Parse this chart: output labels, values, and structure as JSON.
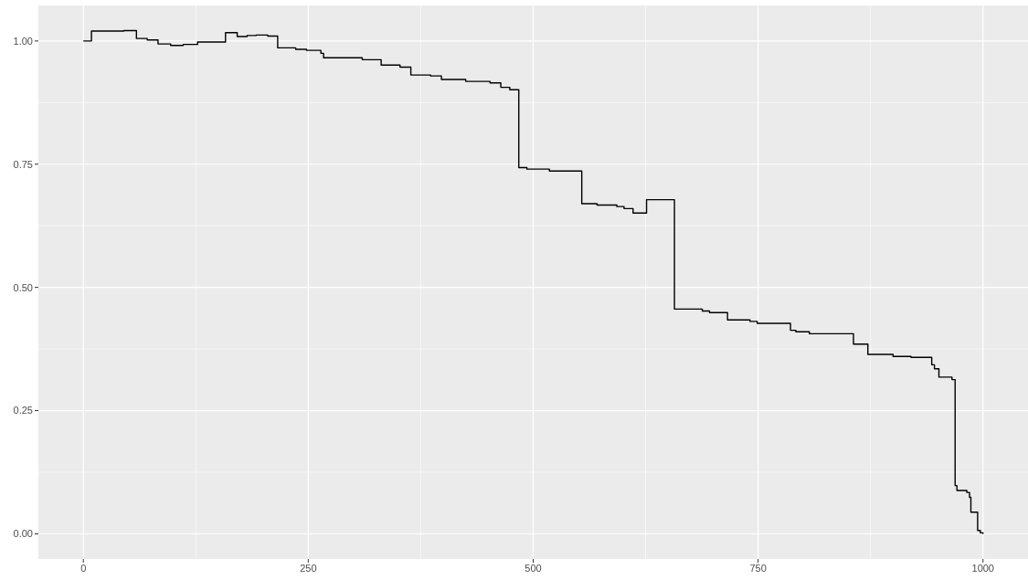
{
  "chart_data": {
    "type": "step",
    "color": "#000000",
    "x": [
      0,
      9,
      45,
      59,
      71,
      83,
      97,
      111,
      127,
      158,
      171,
      182,
      192,
      205,
      216,
      236,
      248,
      264,
      267,
      310,
      331,
      352,
      364,
      386,
      398,
      425,
      452,
      464,
      474,
      484,
      493,
      518,
      554,
      571,
      593,
      601,
      611,
      626,
      657,
      688,
      696,
      716,
      741,
      749,
      786,
      792,
      807,
      856,
      872,
      900,
      920,
      943,
      946,
      951,
      965.5,
      969,
      971,
      982,
      985,
      986.5,
      994,
      997,
      1000
    ],
    "values": [
      1.0,
      1.02,
      1.021,
      1.005,
      1.002,
      0.994,
      0.991,
      0.993,
      0.998,
      1.017,
      1.009,
      1.011,
      1.012,
      1.01,
      0.986,
      0.983,
      0.981,
      0.975,
      0.966,
      0.962,
      0.951,
      0.947,
      0.931,
      0.929,
      0.922,
      0.918,
      0.915,
      0.906,
      0.901,
      0.743,
      0.74,
      0.736,
      0.67,
      0.667,
      0.664,
      0.66,
      0.651,
      0.678,
      0.456,
      0.452,
      0.449,
      0.434,
      0.431,
      0.427,
      0.413,
      0.41,
      0.406,
      0.385,
      0.364,
      0.36,
      0.358,
      0.343,
      0.335,
      0.318,
      0.313,
      0.098,
      0.088,
      0.084,
      0.074,
      0.044,
      0.007,
      0.002,
      0.0
    ],
    "xlim": [
      -50,
      1050
    ],
    "ylim": [
      -0.051,
      1.072
    ],
    "xticks": [
      0,
      250,
      500,
      750,
      1000
    ],
    "yticks": [
      {
        "value": 0,
        "label": "0.00"
      },
      {
        "value": 0.25,
        "label": "0.25"
      },
      {
        "value": 0.5,
        "label": "0.50"
      },
      {
        "value": 0.75,
        "label": "0.75"
      },
      {
        "value": 1,
        "label": "1.00"
      }
    ],
    "grid": true
  }
}
